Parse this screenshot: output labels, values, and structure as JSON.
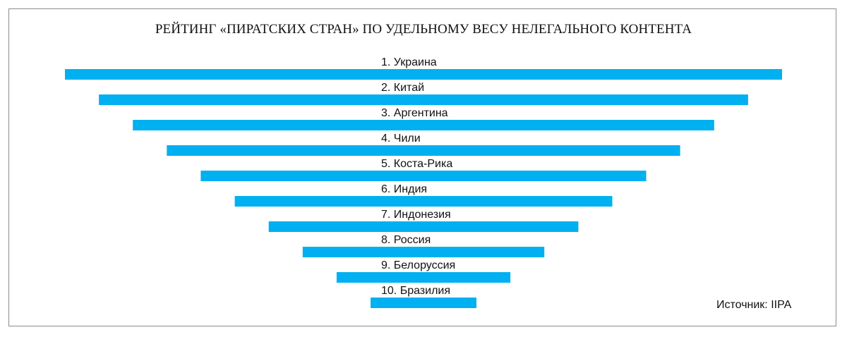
{
  "chart_data": {
    "type": "bar",
    "title": "РЕЙТИНГ «ПИРАТСКИХ СТРАН» ПО УДЕЛЬНОМУ ВЕСУ НЕЛЕГАЛЬНОГО КОНТЕНТА",
    "categories": [
      "1. Украина",
      "2. Китай",
      "3. Аргентина",
      "4. Чили",
      "5. Коста-Рика",
      "6. Индия",
      "7. Индонезия",
      "8. Россия",
      "9. Белоруссия",
      "10. Бразилия"
    ],
    "values": [
      10,
      9,
      8,
      7,
      6,
      5,
      4,
      3,
      2,
      1
    ],
    "bar_color": "#00b0f0",
    "grid": false,
    "legend": "none"
  },
  "source": "Источник: IIPA"
}
